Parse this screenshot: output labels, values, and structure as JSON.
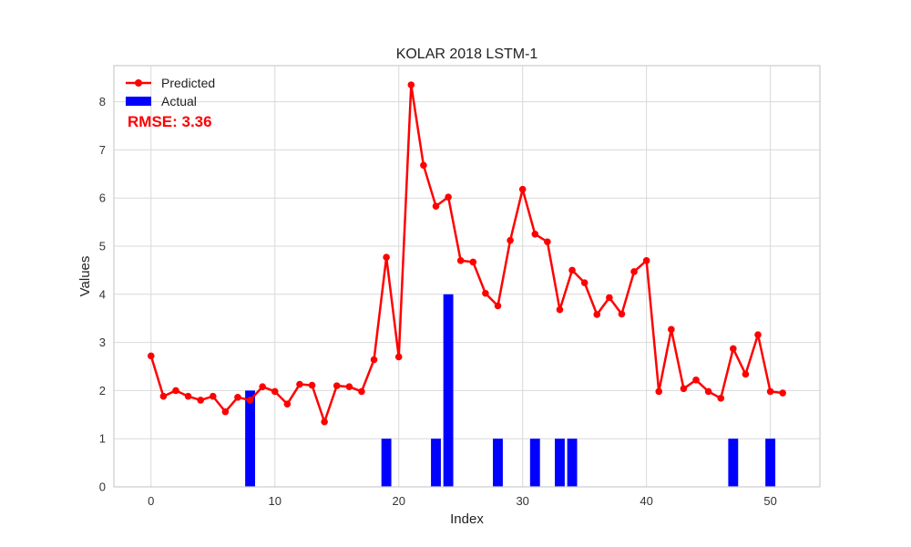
{
  "chart_data": {
    "type": "bar+line",
    "title": "KOLAR 2018 LSTM-1",
    "xlabel": "Index",
    "ylabel": "Values",
    "xlim": [
      -3,
      54
    ],
    "ylim": [
      0,
      8.75
    ],
    "xticks": [
      0,
      10,
      20,
      30,
      40,
      50
    ],
    "yticks": [
      0,
      1,
      2,
      3,
      4,
      5,
      6,
      7,
      8
    ],
    "grid": true,
    "legend_position": "top-left",
    "annotation": "RMSE: 3.36",
    "series": [
      {
        "name": "Predicted",
        "type": "line",
        "color": "#ff0000",
        "x": [
          0,
          1,
          2,
          3,
          4,
          5,
          6,
          7,
          8,
          9,
          10,
          11,
          12,
          13,
          14,
          15,
          16,
          17,
          18,
          19,
          20,
          21,
          22,
          23,
          24,
          25,
          26,
          27,
          28,
          29,
          30,
          31,
          32,
          33,
          34,
          35,
          36,
          37,
          38,
          39,
          40,
          41,
          42,
          43,
          44,
          45,
          46,
          47,
          48,
          49,
          50,
          51
        ],
        "values": [
          2.72,
          1.88,
          2.0,
          1.88,
          1.8,
          1.88,
          1.56,
          1.86,
          1.8,
          2.08,
          1.98,
          1.72,
          2.13,
          2.11,
          1.35,
          2.1,
          2.08,
          1.98,
          2.64,
          4.77,
          2.7,
          8.35,
          6.68,
          5.83,
          6.02,
          4.7,
          4.67,
          4.02,
          3.76,
          5.12,
          6.18,
          5.25,
          5.09,
          3.68,
          4.5,
          4.24,
          3.58,
          3.93,
          3.59,
          4.47,
          4.7,
          1.98,
          3.27,
          2.04,
          2.22,
          1.98,
          1.84,
          2.87,
          2.34,
          3.16,
          1.98,
          1.95
        ]
      },
      {
        "name": "Actual",
        "type": "bar",
        "color": "#0000ff",
        "x": [
          8,
          19,
          23,
          24,
          28,
          31,
          33,
          34,
          47,
          50
        ],
        "values": [
          2,
          1,
          1,
          4,
          1,
          1,
          1,
          1,
          1,
          1
        ]
      }
    ]
  }
}
